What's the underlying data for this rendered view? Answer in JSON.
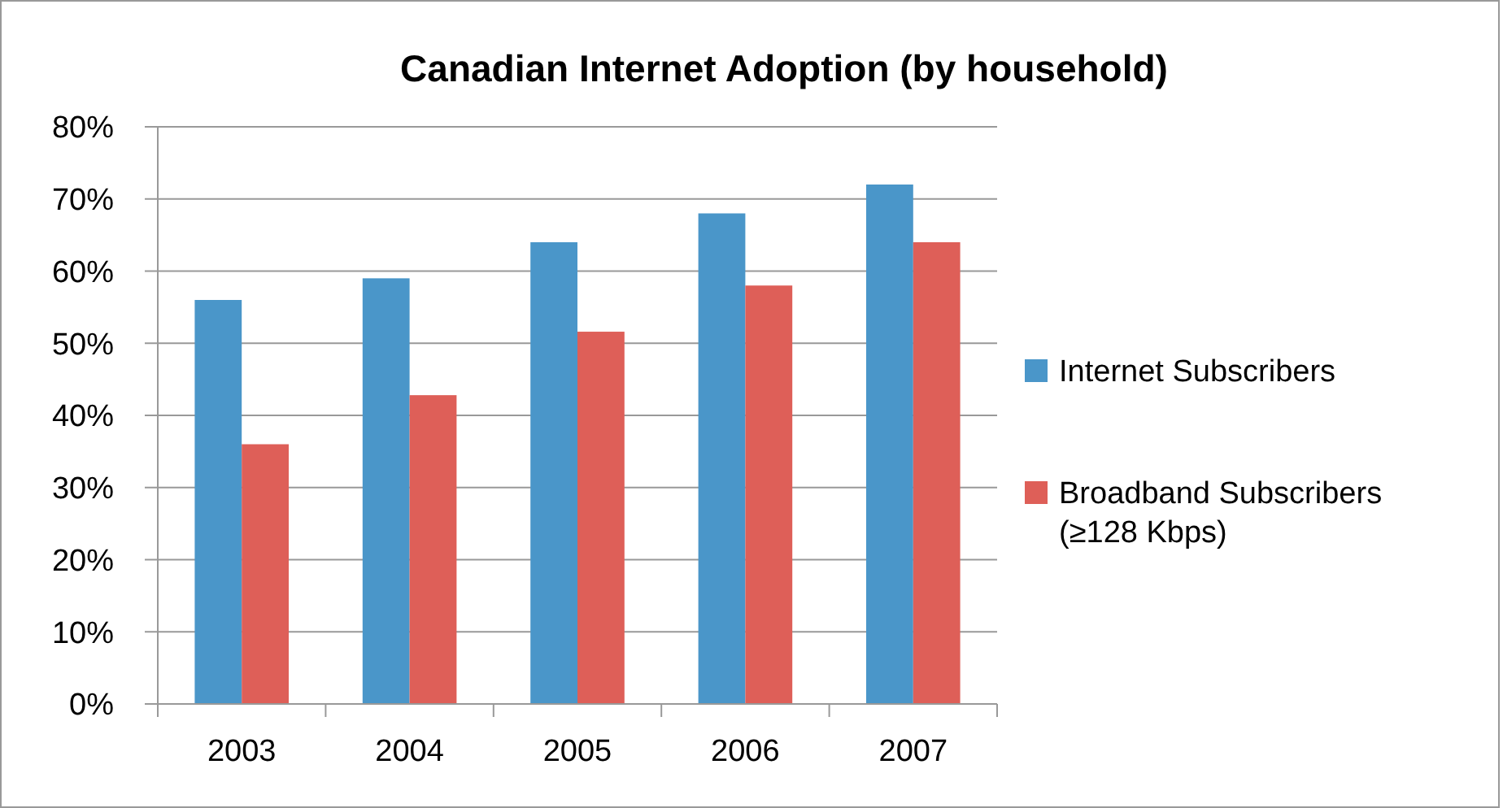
{
  "chart_data": {
    "type": "bar",
    "title": "Canadian Internet Adoption (by household)",
    "categories": [
      "2003",
      "2004",
      "2005",
      "2006",
      "2007"
    ],
    "series": [
      {
        "name": "Internet Subscribers",
        "color": "#4a96c9",
        "values": [
          56,
          59,
          64,
          68,
          72
        ]
      },
      {
        "name": "Broadband Subscribers (≥128 Kbps)",
        "color": "#de5f58",
        "values": [
          36,
          42.8,
          51.6,
          58,
          64
        ]
      }
    ],
    "ylim": [
      0,
      80
    ],
    "yticks": [
      {
        "value": 0,
        "label": "0%"
      },
      {
        "value": 10,
        "label": "10%"
      },
      {
        "value": 20,
        "label": "20%"
      },
      {
        "value": 30,
        "label": "30%"
      },
      {
        "value": 40,
        "label": "40%"
      },
      {
        "value": 50,
        "label": "50%"
      },
      {
        "value": 60,
        "label": "60%"
      },
      {
        "value": 70,
        "label": "70%"
      },
      {
        "value": 80,
        "label": "80%"
      }
    ],
    "grid": "y",
    "legend": "right"
  }
}
